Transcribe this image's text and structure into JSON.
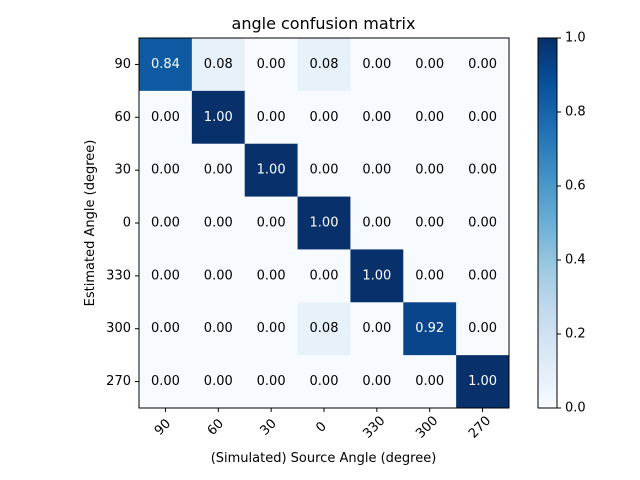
{
  "chart_data": {
    "type": "heatmap",
    "title": "angle confusion matrix",
    "xlabel": "(Simulated) Source Angle (degree)",
    "ylabel": "Estimated Angle (degree)",
    "x_categories": [
      "90",
      "60",
      "30",
      "0",
      "330",
      "300",
      "270"
    ],
    "y_categories": [
      "90",
      "60",
      "30",
      "0",
      "330",
      "300",
      "270"
    ],
    "values": [
      [
        0.84,
        0.08,
        0.0,
        0.08,
        0.0,
        0.0,
        0.0
      ],
      [
        0.0,
        1.0,
        0.0,
        0.0,
        0.0,
        0.0,
        0.0
      ],
      [
        0.0,
        0.0,
        1.0,
        0.0,
        0.0,
        0.0,
        0.0
      ],
      [
        0.0,
        0.0,
        0.0,
        1.0,
        0.0,
        0.0,
        0.0
      ],
      [
        0.0,
        0.0,
        0.0,
        0.0,
        1.0,
        0.0,
        0.0
      ],
      [
        0.0,
        0.0,
        0.0,
        0.08,
        0.0,
        0.92,
        0.0
      ],
      [
        0.0,
        0.0,
        0.0,
        0.0,
        0.0,
        0.0,
        1.0
      ]
    ],
    "colorbar": {
      "range": [
        0.0,
        1.0
      ],
      "ticks": [
        "0.0",
        "0.2",
        "0.4",
        "0.6",
        "0.8",
        "1.0"
      ]
    },
    "colormap": "Blues",
    "colors": {
      "low": "#f7fbff",
      "high": "#08306b",
      "text_light": "#ffffff",
      "text_dark": "#000000"
    }
  }
}
